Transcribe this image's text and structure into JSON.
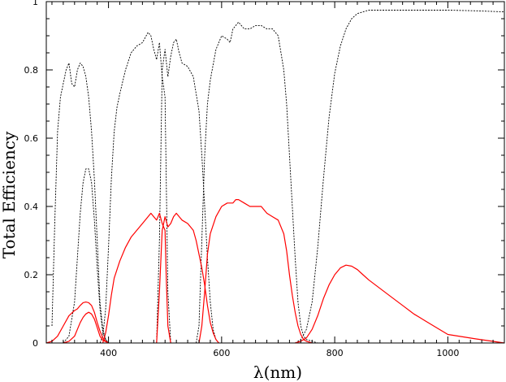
{
  "chart_data": {
    "type": "line",
    "title": "",
    "xlabel": "λ(nm)",
    "ylabel": "Total Efficiency",
    "xlim": [
      290,
      1100
    ],
    "ylim": [
      0,
      1.0
    ],
    "x_ticks": [
      400,
      600,
      800,
      1000
    ],
    "y_ticks": [
      0,
      0.2,
      0.4,
      0.6,
      0.8,
      1
    ],
    "y_tick_labels": [
      "0",
      "0.2",
      "0.4",
      "0.6",
      "0.8",
      "1"
    ],
    "grid": false,
    "legend": "none",
    "colors": {
      "filter": "#000000",
      "efficiency": "#ff0000"
    },
    "series": [
      {
        "style": "filter",
        "x": [
          300,
          305,
          310,
          315,
          320,
          325,
          330,
          335,
          340,
          345,
          350,
          355,
          360,
          365,
          370,
          375,
          380,
          385,
          390,
          395,
          400,
          410
        ],
        "y": [
          0.05,
          0.35,
          0.62,
          0.72,
          0.76,
          0.8,
          0.82,
          0.76,
          0.75,
          0.8,
          0.82,
          0.81,
          0.78,
          0.72,
          0.62,
          0.48,
          0.3,
          0.12,
          0.04,
          0.01,
          0.0,
          0.0
        ]
      },
      {
        "style": "filter",
        "x": [
          320,
          330,
          340,
          345,
          350,
          355,
          360,
          365,
          370,
          375,
          380,
          385,
          390,
          395,
          400
        ],
        "y": [
          0.0,
          0.02,
          0.12,
          0.25,
          0.38,
          0.47,
          0.51,
          0.51,
          0.47,
          0.36,
          0.22,
          0.1,
          0.03,
          0.01,
          0.0
        ]
      },
      {
        "style": "filter",
        "x": [
          385,
          390,
          395,
          400,
          405,
          410,
          415,
          420,
          430,
          440,
          450,
          460,
          470,
          475,
          480,
          485,
          490,
          495,
          500,
          505,
          510
        ],
        "y": [
          0.0,
          0.02,
          0.1,
          0.28,
          0.48,
          0.62,
          0.69,
          0.73,
          0.8,
          0.85,
          0.87,
          0.88,
          0.91,
          0.9,
          0.86,
          0.83,
          0.88,
          0.78,
          0.72,
          0.15,
          0.0
        ]
      },
      {
        "style": "filter",
        "x": [
          485,
          490,
          495,
          500,
          505,
          510,
          515,
          520,
          525,
          530,
          540,
          550,
          560,
          565,
          570,
          575,
          580,
          585,
          590,
          595,
          600
        ],
        "y": [
          0.0,
          0.3,
          0.8,
          0.86,
          0.78,
          0.84,
          0.88,
          0.89,
          0.85,
          0.82,
          0.81,
          0.78,
          0.68,
          0.55,
          0.4,
          0.25,
          0.12,
          0.04,
          0.01,
          0.0,
          0.0
        ]
      },
      {
        "style": "filter",
        "x": [
          555,
          560,
          565,
          570,
          575,
          580,
          590,
          600,
          610,
          615,
          620,
          630,
          640,
          650,
          660,
          670,
          680,
          690,
          700,
          710,
          715,
          720,
          725,
          730,
          735,
          740,
          745,
          750,
          760,
          770
        ],
        "y": [
          0.0,
          0.05,
          0.3,
          0.55,
          0.7,
          0.77,
          0.86,
          0.9,
          0.89,
          0.88,
          0.92,
          0.94,
          0.92,
          0.92,
          0.93,
          0.93,
          0.92,
          0.92,
          0.9,
          0.8,
          0.7,
          0.55,
          0.4,
          0.25,
          0.12,
          0.05,
          0.02,
          0.01,
          0.005,
          0.0
        ]
      },
      {
        "style": "filter",
        "x": [
          730,
          740,
          750,
          760,
          770,
          780,
          790,
          800,
          810,
          820,
          830,
          840,
          850,
          860,
          880,
          900,
          950,
          1000,
          1050,
          1100
        ],
        "y": [
          0.0,
          0.01,
          0.04,
          0.12,
          0.28,
          0.48,
          0.66,
          0.79,
          0.87,
          0.92,
          0.95,
          0.965,
          0.97,
          0.975,
          0.975,
          0.975,
          0.975,
          0.975,
          0.973,
          0.97
        ]
      },
      {
        "style": "efficiency",
        "x": [
          290,
          300,
          310,
          320,
          330,
          340,
          345,
          350,
          355,
          360,
          365,
          370,
          375,
          380,
          385,
          390,
          395,
          400
        ],
        "y": [
          0.0,
          0.005,
          0.02,
          0.05,
          0.08,
          0.095,
          0.1,
          0.11,
          0.118,
          0.12,
          0.118,
          0.11,
          0.09,
          0.06,
          0.035,
          0.015,
          0.005,
          0.0
        ]
      },
      {
        "style": "efficiency",
        "x": [
          320,
          330,
          340,
          345,
          350,
          355,
          360,
          365,
          370,
          375,
          380,
          385,
          390,
          400
        ],
        "y": [
          0.0,
          0.005,
          0.02,
          0.04,
          0.06,
          0.075,
          0.085,
          0.09,
          0.085,
          0.07,
          0.045,
          0.02,
          0.008,
          0.0
        ]
      },
      {
        "style": "efficiency",
        "x": [
          390,
          395,
          400,
          405,
          410,
          420,
          430,
          440,
          450,
          460,
          470,
          475,
          480,
          485,
          490,
          495,
          500,
          502,
          505,
          510
        ],
        "y": [
          0.0,
          0.03,
          0.08,
          0.14,
          0.19,
          0.24,
          0.28,
          0.31,
          0.33,
          0.35,
          0.37,
          0.38,
          0.37,
          0.36,
          0.38,
          0.35,
          0.33,
          0.2,
          0.05,
          0.0
        ]
      },
      {
        "style": "efficiency",
        "x": [
          485,
          490,
          495,
          500,
          505,
          510,
          515,
          520,
          525,
          530,
          540,
          550,
          555,
          560,
          565,
          570,
          575,
          580,
          585,
          590,
          595
        ],
        "y": [
          0.0,
          0.15,
          0.33,
          0.37,
          0.34,
          0.35,
          0.37,
          0.38,
          0.37,
          0.36,
          0.35,
          0.33,
          0.3,
          0.26,
          0.22,
          0.17,
          0.11,
          0.06,
          0.03,
          0.01,
          0.0
        ]
      },
      {
        "style": "efficiency",
        "x": [
          560,
          565,
          570,
          575,
          580,
          590,
          600,
          610,
          620,
          625,
          630,
          640,
          650,
          660,
          670,
          680,
          690,
          700,
          710,
          715,
          720,
          725,
          730,
          735,
          740,
          745,
          750,
          760
        ],
        "y": [
          0.0,
          0.05,
          0.15,
          0.26,
          0.32,
          0.37,
          0.4,
          0.41,
          0.41,
          0.42,
          0.42,
          0.41,
          0.4,
          0.4,
          0.4,
          0.38,
          0.37,
          0.36,
          0.32,
          0.27,
          0.2,
          0.14,
          0.09,
          0.05,
          0.025,
          0.01,
          0.005,
          0.0
        ]
      },
      {
        "style": "efficiency",
        "x": [
          730,
          740,
          750,
          760,
          770,
          780,
          790,
          800,
          810,
          820,
          830,
          840,
          850,
          860,
          880,
          900,
          920,
          940,
          950,
          960,
          980,
          1000,
          1050,
          1100
        ],
        "y": [
          0.0,
          0.005,
          0.015,
          0.04,
          0.08,
          0.13,
          0.17,
          0.2,
          0.22,
          0.228,
          0.225,
          0.215,
          0.2,
          0.185,
          0.16,
          0.135,
          0.11,
          0.085,
          0.075,
          0.065,
          0.045,
          0.025,
          0.012,
          0.0
        ]
      }
    ]
  }
}
